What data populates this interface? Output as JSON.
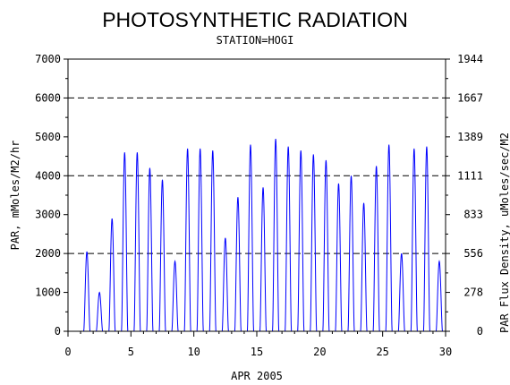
{
  "chart_data": {
    "type": "line",
    "title": "PHOTOSYNTHETIC RADIATION",
    "subtitle": "STATION=HOGI",
    "xlabel": "APR 2005",
    "ylabel": "PAR, mMoles/M2/hr",
    "ylabel_right": "PAR Flux Density, uMoles/sec/M2",
    "xlim": [
      0,
      30
    ],
    "ylim": [
      0,
      7000
    ],
    "x_ticks": [
      "0",
      "5",
      "10",
      "15",
      "20",
      "25",
      "30"
    ],
    "y_ticks": [
      "0",
      "1000",
      "2000",
      "3000",
      "4000",
      "5000",
      "6000",
      "7000"
    ],
    "y2_ticks": [
      "0",
      "278",
      "556",
      "833",
      "1111",
      "1389",
      "1667",
      "1944"
    ],
    "gridlines_y": [
      2000,
      4000,
      6000
    ],
    "line_color": "#0000ff",
    "daily_peaks": [
      {
        "day": 1,
        "peak": 2050
      },
      {
        "day": 2,
        "peak": 1000
      },
      {
        "day": 3,
        "peak": 2900
      },
      {
        "day": 4,
        "peak": 4600
      },
      {
        "day": 5,
        "peak": 4600
      },
      {
        "day": 6,
        "peak": 4200
      },
      {
        "day": 7,
        "peak": 3900
      },
      {
        "day": 8,
        "peak": 1800
      },
      {
        "day": 9,
        "peak": 4700
      },
      {
        "day": 10,
        "peak": 4700
      },
      {
        "day": 11,
        "peak": 4650
      },
      {
        "day": 12,
        "peak": 2400
      },
      {
        "day": 13,
        "peak": 3450
      },
      {
        "day": 14,
        "peak": 4800
      },
      {
        "day": 15,
        "peak": 3700
      },
      {
        "day": 16,
        "peak": 4950
      },
      {
        "day": 17,
        "peak": 4750
      },
      {
        "day": 18,
        "peak": 4650
      },
      {
        "day": 19,
        "peak": 4550
      },
      {
        "day": 20,
        "peak": 4400
      },
      {
        "day": 21,
        "peak": 3800
      },
      {
        "day": 22,
        "peak": 4000
      },
      {
        "day": 23,
        "peak": 3300
      },
      {
        "day": 24,
        "peak": 4250
      },
      {
        "day": 25,
        "peak": 4800
      },
      {
        "day": 26,
        "peak": 2000
      },
      {
        "day": 27,
        "peak": 4700
      },
      {
        "day": 28,
        "peak": 4750
      },
      {
        "day": 29,
        "peak": 1800
      }
    ]
  }
}
